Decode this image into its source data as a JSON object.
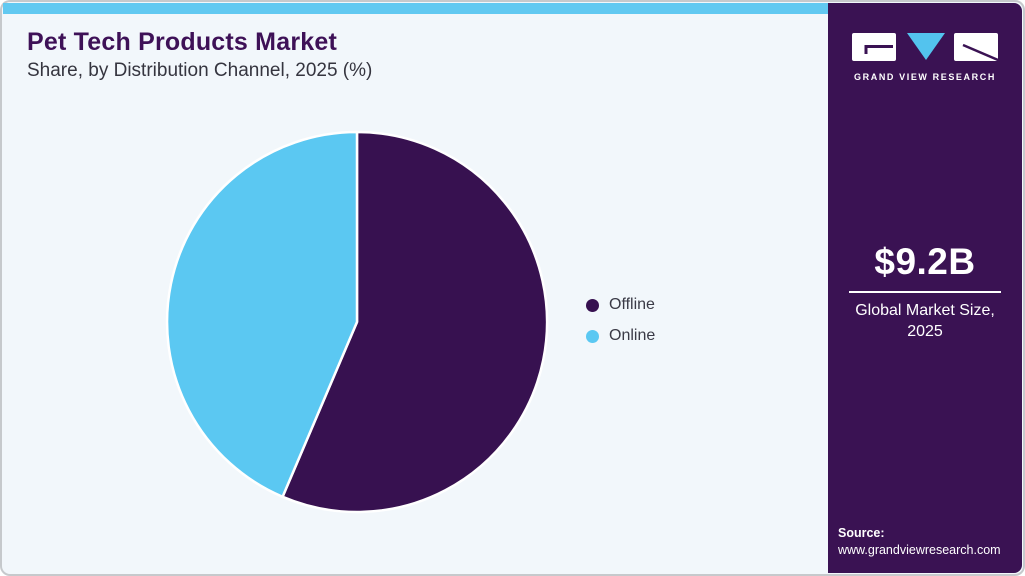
{
  "header": {
    "title": "Pet Tech Products Market",
    "subtitle": "Share, by Distribution Channel, 2025 (%)"
  },
  "chart_data": {
    "type": "pie",
    "title": "Pet Tech Products Market Share, by Distribution Channel, 2025 (%)",
    "categories": [
      "Offline",
      "Online"
    ],
    "values": [
      56.4,
      43.6
    ],
    "unit": "%",
    "colors": [
      "#371150",
      "#5bc8f2"
    ],
    "legend_position": "right",
    "start_angle_deg": 0,
    "direction": "clockwise",
    "slice_divider_color": "#ffffff"
  },
  "sidebar": {
    "logo_text": "GRAND VIEW RESEARCH",
    "market_size_value": "$9.2B",
    "market_size_label": "Global Market Size, 2025",
    "source_label": "Source:",
    "source_url": "www.grandviewresearch.com",
    "panel_color": "#3a1253",
    "accent_color": "#62c9f1"
  }
}
